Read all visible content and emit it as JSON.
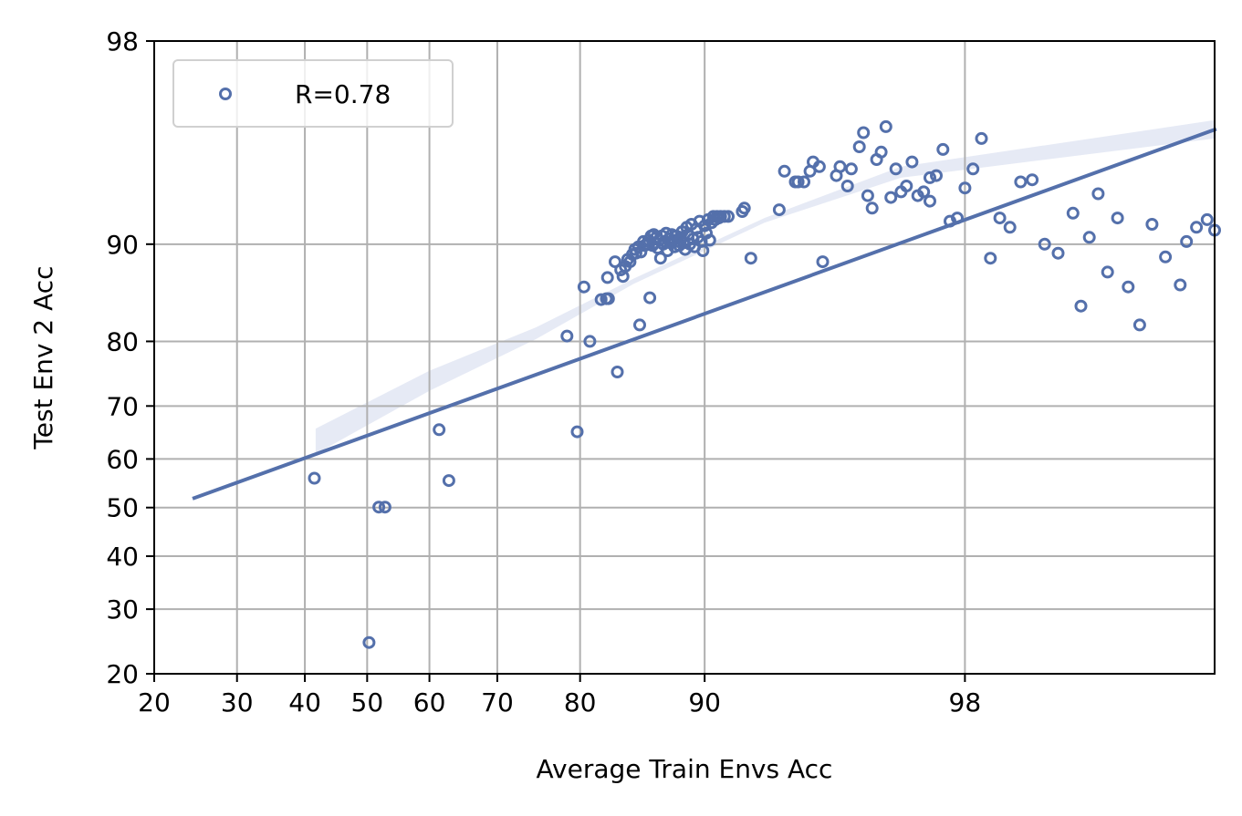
{
  "chart_data": {
    "type": "scatter",
    "xlabel": "Average Train Envs Acc",
    "ylabel": "Test Env 2 Acc",
    "x_scale": "logit",
    "y_scale": "logit",
    "xlim": [
      20,
      99.6
    ],
    "ylim": [
      20,
      98
    ],
    "x_ticks": [
      20,
      30,
      40,
      50,
      60,
      70,
      80,
      90,
      98
    ],
    "y_ticks": [
      20,
      30,
      40,
      50,
      60,
      70,
      80,
      90,
      98
    ],
    "grid": true,
    "legend": {
      "placement": "top-left",
      "entries": [
        "R=0.78"
      ]
    },
    "colors": {
      "series": "#5470ab",
      "band": "#dde3f1",
      "grid": "#b0b0b0"
    },
    "series": [
      {
        "name": "R=0.78",
        "points": [
          [
            41.5,
            56.1
          ],
          [
            51.9,
            50.1
          ],
          [
            52.9,
            50.1
          ],
          [
            50.3,
            24.5
          ],
          [
            61.5,
            65.7
          ],
          [
            63.0,
            55.6
          ],
          [
            78.6,
            80.7
          ],
          [
            79.7,
            65.3
          ],
          [
            80.4,
            86.3
          ],
          [
            81.0,
            80.0
          ],
          [
            82.1,
            85.0
          ],
          [
            82.6,
            85.1
          ],
          [
            82.7,
            87.2
          ],
          [
            82.8,
            85.1
          ],
          [
            83.4,
            88.6
          ],
          [
            83.6,
            75.6
          ],
          [
            83.9,
            87.9
          ],
          [
            84.1,
            87.3
          ],
          [
            84.3,
            88.2
          ],
          [
            84.5,
            88.8
          ],
          [
            84.7,
            88.6
          ],
          [
            84.9,
            89.2
          ],
          [
            85.1,
            89.6
          ],
          [
            85.2,
            89.3
          ],
          [
            85.4,
            89.8
          ],
          [
            85.5,
            82.1
          ],
          [
            85.6,
            89.4
          ],
          [
            85.8,
            90.2
          ],
          [
            85.9,
            89.9
          ],
          [
            86.1,
            90.0
          ],
          [
            86.2,
            90.3
          ],
          [
            86.3,
            85.2
          ],
          [
            86.4,
            90.6
          ],
          [
            86.5,
            89.9
          ],
          [
            86.6,
            90.7
          ],
          [
            86.7,
            90.1
          ],
          [
            86.8,
            90.5
          ],
          [
            86.9,
            89.7
          ],
          [
            87.0,
            90.3
          ],
          [
            87.1,
            88.9
          ],
          [
            87.2,
            90.6
          ],
          [
            87.3,
            90.0
          ],
          [
            87.4,
            90.2
          ],
          [
            87.5,
            90.8
          ],
          [
            87.6,
            89.5
          ],
          [
            87.7,
            90.4
          ],
          [
            87.8,
            90.1
          ],
          [
            87.9,
            90.7
          ],
          [
            88.0,
            90.3
          ],
          [
            88.1,
            89.8
          ],
          [
            88.2,
            90.6
          ],
          [
            88.3,
            90.2
          ],
          [
            88.4,
            89.9
          ],
          [
            88.5,
            90.5
          ],
          [
            88.6,
            90.9
          ],
          [
            88.7,
            90.1
          ],
          [
            88.8,
            89.6
          ],
          [
            88.9,
            91.2
          ],
          [
            89.0,
            90.7
          ],
          [
            89.1,
            90.0
          ],
          [
            89.2,
            91.4
          ],
          [
            89.3,
            90.4
          ],
          [
            89.4,
            89.8
          ],
          [
            89.5,
            91.1
          ],
          [
            89.6,
            90.5
          ],
          [
            89.7,
            91.6
          ],
          [
            89.8,
            90.2
          ],
          [
            89.9,
            89.5
          ],
          [
            90.0,
            91.3
          ],
          [
            90.1,
            90.8
          ],
          [
            90.2,
            91.7
          ],
          [
            90.3,
            90.3
          ],
          [
            90.4,
            91.5
          ],
          [
            90.5,
            91.9
          ],
          [
            90.6,
            91.7
          ],
          [
            90.7,
            91.9
          ],
          [
            90.8,
            91.8
          ],
          [
            90.9,
            91.9
          ],
          [
            91.1,
            91.9
          ],
          [
            91.3,
            91.9
          ],
          [
            92.0,
            92.2
          ],
          [
            92.1,
            92.4
          ],
          [
            92.4,
            88.9
          ],
          [
            93.6,
            92.3
          ],
          [
            93.8,
            94.3
          ],
          [
            94.2,
            93.8
          ],
          [
            94.3,
            93.8
          ],
          [
            94.5,
            93.8
          ],
          [
            94.7,
            94.3
          ],
          [
            94.8,
            94.7
          ],
          [
            95.0,
            94.5
          ],
          [
            95.1,
            88.6
          ],
          [
            95.5,
            94.1
          ],
          [
            95.6,
            94.5
          ],
          [
            95.8,
            93.6
          ],
          [
            95.9,
            94.4
          ],
          [
            96.1,
            95.3
          ],
          [
            96.2,
            95.8
          ],
          [
            96.3,
            93.1
          ],
          [
            96.4,
            92.4
          ],
          [
            96.5,
            94.8
          ],
          [
            96.6,
            95.1
          ],
          [
            96.7,
            96.0
          ],
          [
            96.8,
            93.0
          ],
          [
            96.9,
            94.4
          ],
          [
            97.0,
            93.3
          ],
          [
            97.1,
            93.6
          ],
          [
            97.2,
            94.7
          ],
          [
            97.3,
            93.1
          ],
          [
            97.4,
            93.3
          ],
          [
            97.5,
            94.0
          ],
          [
            97.5,
            92.8
          ],
          [
            97.6,
            94.1
          ],
          [
            97.7,
            95.2
          ],
          [
            97.8,
            91.6
          ],
          [
            97.9,
            91.8
          ],
          [
            98.0,
            93.5
          ],
          [
            98.1,
            94.4
          ],
          [
            98.2,
            95.6
          ],
          [
            98.3,
            88.9
          ],
          [
            98.4,
            91.8
          ],
          [
            98.5,
            91.2
          ],
          [
            98.6,
            93.8
          ],
          [
            98.7,
            93.9
          ],
          [
            98.8,
            90.0
          ],
          [
            98.9,
            89.3
          ],
          [
            99.0,
            92.1
          ],
          [
            99.05,
            84.3
          ],
          [
            99.1,
            90.5
          ],
          [
            99.15,
            93.2
          ],
          [
            99.2,
            87.7
          ],
          [
            99.25,
            91.8
          ],
          [
            99.3,
            86.3
          ],
          [
            99.35,
            82.1
          ],
          [
            99.4,
            91.4
          ],
          [
            99.45,
            89.0
          ],
          [
            99.5,
            86.5
          ],
          [
            99.52,
            90.2
          ],
          [
            99.55,
            91.2
          ],
          [
            99.58,
            91.7
          ],
          [
            99.6,
            91.0
          ]
        ]
      }
    ],
    "regression": {
      "x_range": [
        24.5,
        99.6
      ],
      "y_at_start": 52.0,
      "y_at_end": 95.9
    },
    "confidence_band": [
      [
        41.7,
        65.9,
        61.0
      ],
      [
        60.0,
        75.8,
        72.6
      ],
      [
        75.0,
        81.8,
        80.3
      ],
      [
        85.0,
        87.1,
        86.6
      ],
      [
        93.0,
        91.8,
        91.5
      ],
      [
        97.0,
        94.5,
        94.0
      ],
      [
        99.6,
        96.2,
        95.6
      ]
    ]
  }
}
